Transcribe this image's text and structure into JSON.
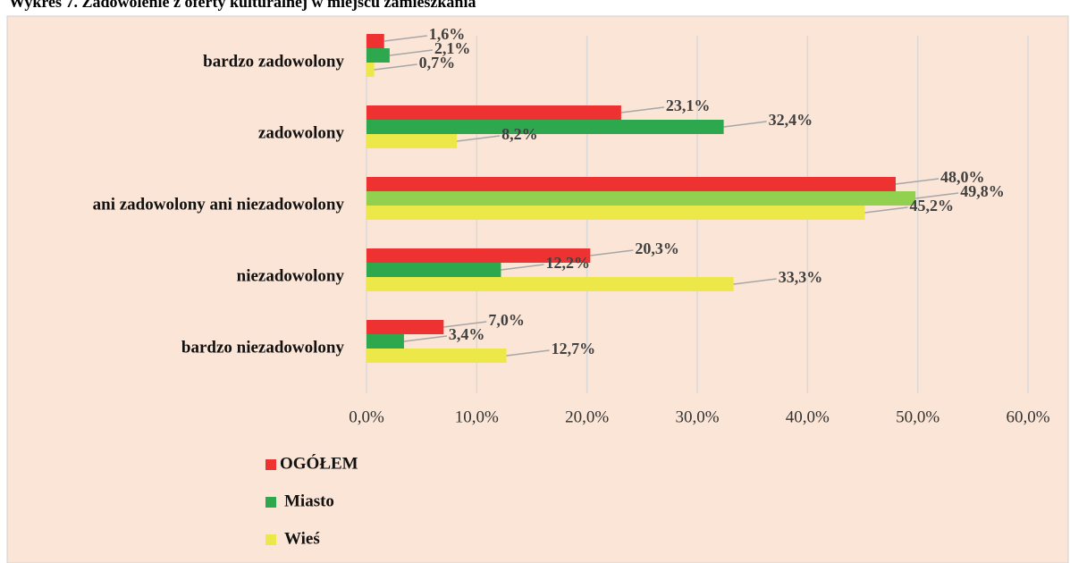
{
  "chart_data": {
    "type": "bar",
    "orientation": "horizontal",
    "title": "Wykres 7. Zadowolenie z oferty kulturalnej w miejscu zamieszkania",
    "categories": [
      "bardzo zadowolony",
      "zadowolony",
      "ani zadowolony ani niezadowolony",
      "niezadowolony",
      "bardzo niezadowolony"
    ],
    "series": [
      {
        "name": "OGÓŁEM",
        "color": "#ee3131",
        "values": [
          1.6,
          23.1,
          48.0,
          20.3,
          7.0
        ],
        "value_labels": [
          "1,6%",
          "23,1%",
          "48,0%",
          "20,3%",
          "7,0%"
        ]
      },
      {
        "name": "Miasto",
        "color": "#2ea84f",
        "colors": [
          "#2ea84f",
          "#2ea84f",
          "#92d050",
          "#2ea84f",
          "#2ea84f"
        ],
        "values": [
          2.1,
          32.4,
          49.8,
          12.2,
          3.4
        ],
        "value_labels": [
          "2,1%",
          "32,4%",
          "49,8%",
          "12,2%",
          "3,4%"
        ]
      },
      {
        "name": "Wieś",
        "color": "#ede84a",
        "values": [
          0.7,
          8.2,
          45.2,
          33.3,
          12.7
        ],
        "value_labels": [
          "0,7%",
          "8,2%",
          "45,2%",
          "33,3%",
          "12,7%"
        ]
      }
    ],
    "xlim": [
      0,
      60
    ],
    "xticks": [
      {
        "value": 0,
        "label": "0,0%"
      },
      {
        "value": 10,
        "label": "10,0%"
      },
      {
        "value": 20,
        "label": "20,0%"
      },
      {
        "value": 30,
        "label": "30,0%"
      },
      {
        "value": 40,
        "label": "40,0%"
      },
      {
        "value": 50,
        "label": "50,0%"
      },
      {
        "value": 60,
        "label": "60,0%"
      }
    ],
    "grid": true,
    "legend": "bottom-left"
  }
}
